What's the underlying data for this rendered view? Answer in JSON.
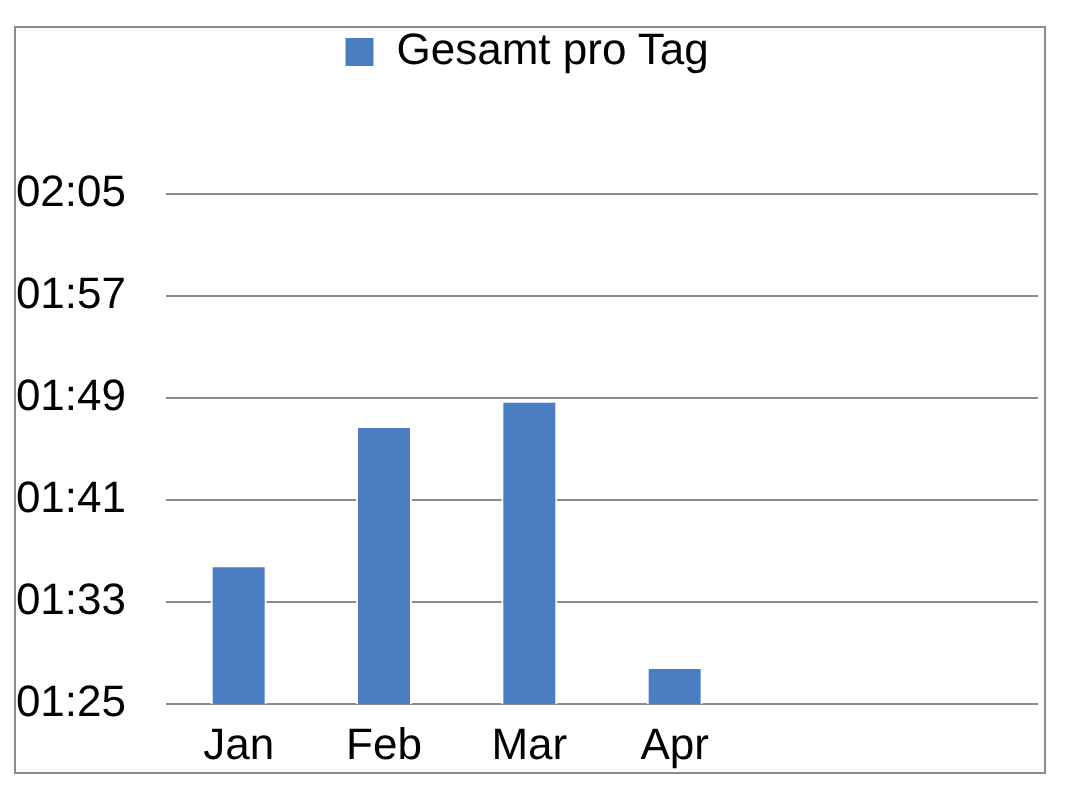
{
  "chart_data": {
    "type": "bar",
    "categories": [
      "Jan",
      "Feb",
      "Mar",
      "Apr",
      null,
      null
    ],
    "series": [
      {
        "name": "Gesamt pro Tag",
        "color": "#4a7dc2",
        "values": [
          1.598,
          1.78,
          1.813,
          1.465,
          null,
          null
        ]
      }
    ],
    "ylim": [
      1.4167,
      2.0833
    ],
    "yticks": [
      {
        "value": 1.4167,
        "label": "01:25"
      },
      {
        "value": 1.55,
        "label": "01:33"
      },
      {
        "value": 1.6833,
        "label": "01:41"
      },
      {
        "value": 1.8167,
        "label": "01:49"
      },
      {
        "value": 1.95,
        "label": "01:57"
      },
      {
        "value": 2.0833,
        "label": "02:05"
      }
    ],
    "grid": "y",
    "legend": "top"
  }
}
